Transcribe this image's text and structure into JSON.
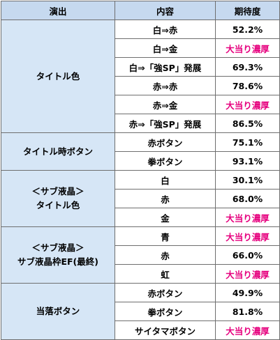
{
  "header": {
    "col1": "演出",
    "col2": "内容",
    "col3": "期待度"
  },
  "groups": [
    {
      "lines": [
        "タイトル色"
      ],
      "rows": [
        {
          "content": "白⇒赤",
          "value": "52.2%",
          "highlight": false
        },
        {
          "content": "白⇒金",
          "value": "大当り濃厚",
          "highlight": true
        },
        {
          "content": "白⇒「強SP」発展",
          "value": "69.3%",
          "highlight": false
        },
        {
          "content": "赤⇒赤",
          "value": "78.6%",
          "highlight": false
        },
        {
          "content": "赤⇒金",
          "value": "大当り濃厚",
          "highlight": true
        },
        {
          "content": "赤⇒「強SP」発展",
          "value": "86.5%",
          "highlight": false
        }
      ]
    },
    {
      "lines": [
        "タイトル時ボタン"
      ],
      "rows": [
        {
          "content": "赤ボタン",
          "value": "75.1%",
          "highlight": false
        },
        {
          "content": "拳ボタン",
          "value": "93.1%",
          "highlight": false
        }
      ]
    },
    {
      "lines": [
        "＜サブ液晶＞",
        "タイトル色"
      ],
      "rows": [
        {
          "content": "白",
          "value": "30.1%",
          "highlight": false
        },
        {
          "content": "赤",
          "value": "68.0%",
          "highlight": false
        },
        {
          "content": "金",
          "value": "大当り濃厚",
          "highlight": true
        }
      ]
    },
    {
      "lines": [
        "＜サブ液晶＞",
        "サブ液晶枠EF(最終)"
      ],
      "rows": [
        {
          "content": "青",
          "value": "大当り濃厚",
          "highlight": true
        },
        {
          "content": "赤",
          "value": "66.0%",
          "highlight": false
        },
        {
          "content": "虹",
          "value": "大当り濃厚",
          "highlight": true
        }
      ]
    },
    {
      "lines": [
        "当落ボタン"
      ],
      "rows": [
        {
          "content": "赤ボタン",
          "value": "49.9%",
          "highlight": false
        },
        {
          "content": "拳ボタン",
          "value": "81.8%",
          "highlight": false
        },
        {
          "content": "サイタマボタン",
          "value": "大当り濃厚",
          "highlight": true
        }
      ]
    }
  ]
}
